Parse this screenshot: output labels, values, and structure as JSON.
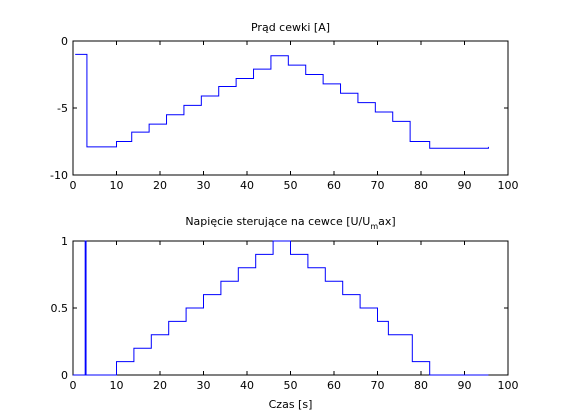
{
  "chart_data": [
    {
      "type": "line",
      "title": "Prąd cewki [A]",
      "xlabel": "",
      "ylabel": "",
      "xlim": [
        0,
        100
      ],
      "ylim": [
        -10,
        0
      ],
      "xticks": [
        "0",
        "10",
        "20",
        "30",
        "40",
        "50",
        "60",
        "70",
        "80",
        "90",
        "100"
      ],
      "yticks": [
        "-10",
        "-5",
        "0"
      ],
      "grid": false,
      "series": [
        {
          "color": "#0000ff",
          "step": true,
          "x": [
            0.5,
            3,
            3.2,
            10,
            13.5,
            17.5,
            21.5,
            25.5,
            29.5,
            33.5,
            37.5,
            41.5,
            45.5,
            49.5,
            53.5,
            57.5,
            61.5,
            65.5,
            69.5,
            73.5,
            77.5,
            82,
            95.5
          ],
          "y": [
            -1.0,
            -1.0,
            -7.9,
            -7.5,
            -6.8,
            -6.2,
            -5.5,
            -4.8,
            -4.1,
            -3.4,
            -2.8,
            -2.1,
            -1.1,
            -1.8,
            -2.5,
            -3.2,
            -3.9,
            -4.6,
            -5.3,
            -6.0,
            -7.5,
            -8.0,
            -7.9
          ]
        }
      ]
    },
    {
      "type": "line",
      "title_main": "Napięcie sterujące na cewce [U/U",
      "title_sub": "m",
      "title_rest": "ax]",
      "xlabel": "Czas [s]",
      "ylabel": "",
      "xlim": [
        0,
        100
      ],
      "ylim": [
        0,
        1
      ],
      "xticks": [
        "0",
        "10",
        "20",
        "30",
        "40",
        "50",
        "60",
        "70",
        "80",
        "90",
        "100"
      ],
      "yticks": [
        "0",
        "0.5",
        "1"
      ],
      "grid": false,
      "series": [
        {
          "color": "#0000ff",
          "step": true,
          "x": [
            0,
            2.8,
            3,
            10,
            14,
            18,
            22,
            26,
            30,
            34,
            38,
            42,
            46,
            50,
            54,
            58,
            62,
            66,
            70,
            72.5,
            78,
            82,
            95.5
          ],
          "y": [
            0,
            1,
            0,
            0.1,
            0.2,
            0.3,
            0.4,
            0.5,
            0.6,
            0.7,
            0.8,
            0.9,
            1.0,
            0.9,
            0.8,
            0.7,
            0.6,
            0.5,
            0.4,
            0.3,
            0.1,
            0,
            0
          ]
        }
      ]
    }
  ]
}
